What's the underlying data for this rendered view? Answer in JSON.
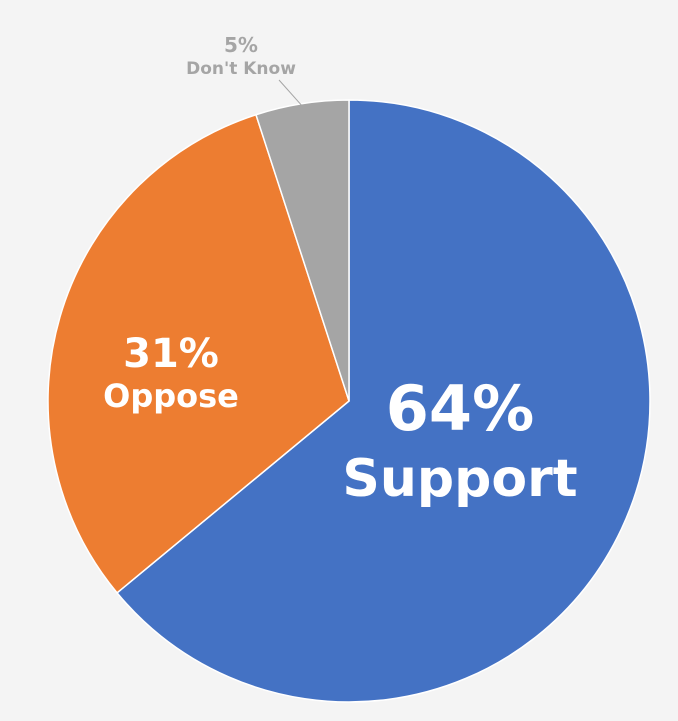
{
  "chart_data": {
    "type": "pie",
    "start_angle_deg": 0,
    "direction": "clockwise",
    "slices": [
      {
        "label": "Support",
        "value": 64,
        "value_text": "64%",
        "color": "#4472c4",
        "label_color": "#ffffff",
        "label_position": "inside"
      },
      {
        "label": "Oppose",
        "value": 31,
        "value_text": "31%",
        "color": "#ed7d31",
        "label_color": "#ffffff",
        "label_position": "inside"
      },
      {
        "label": "Don't Know",
        "value": 5,
        "value_text": "5%",
        "color": "#a5a5a5",
        "label_color": "#a5a5a5",
        "label_position": "outside"
      }
    ]
  },
  "colors": {
    "background": "#f4f4f4",
    "slice_stroke": "#ffffff"
  }
}
